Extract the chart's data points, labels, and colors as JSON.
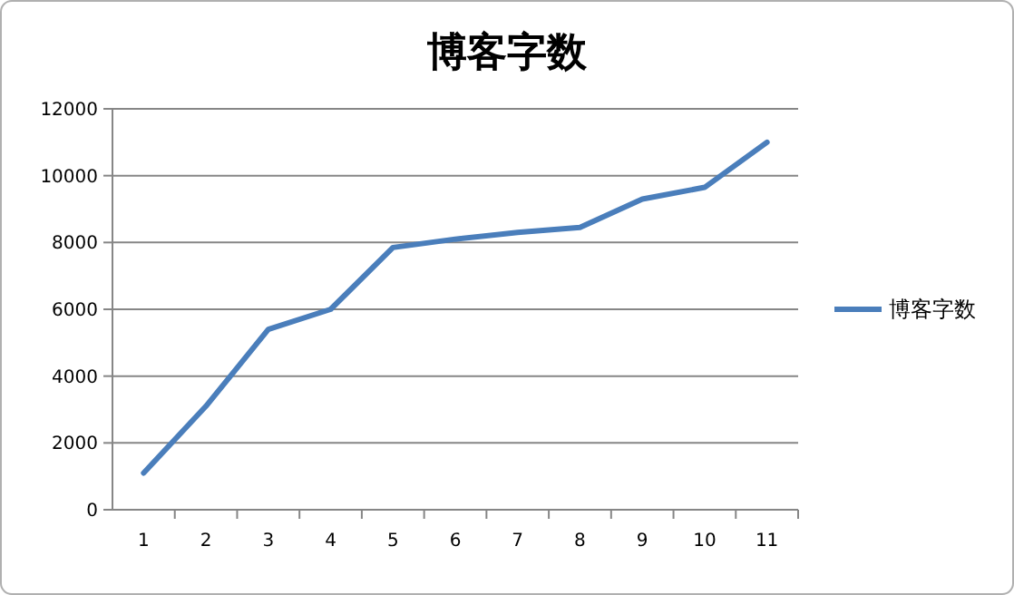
{
  "chart_data": {
    "type": "line",
    "title": "博客字数",
    "categories": [
      "1",
      "2",
      "3",
      "4",
      "5",
      "6",
      "7",
      "8",
      "9",
      "10",
      "11"
    ],
    "series": [
      {
        "name": "博客字数",
        "color": "#4a7ebb",
        "values": [
          1100,
          3100,
          5400,
          6000,
          7850,
          8100,
          8300,
          8450,
          9300,
          9650,
          11000
        ]
      }
    ],
    "ylim": [
      0,
      12000
    ],
    "yticks": [
      0,
      2000,
      4000,
      6000,
      8000,
      10000,
      12000
    ],
    "grid": "y",
    "legend": "right",
    "marker": "none",
    "line_style": "solid"
  }
}
